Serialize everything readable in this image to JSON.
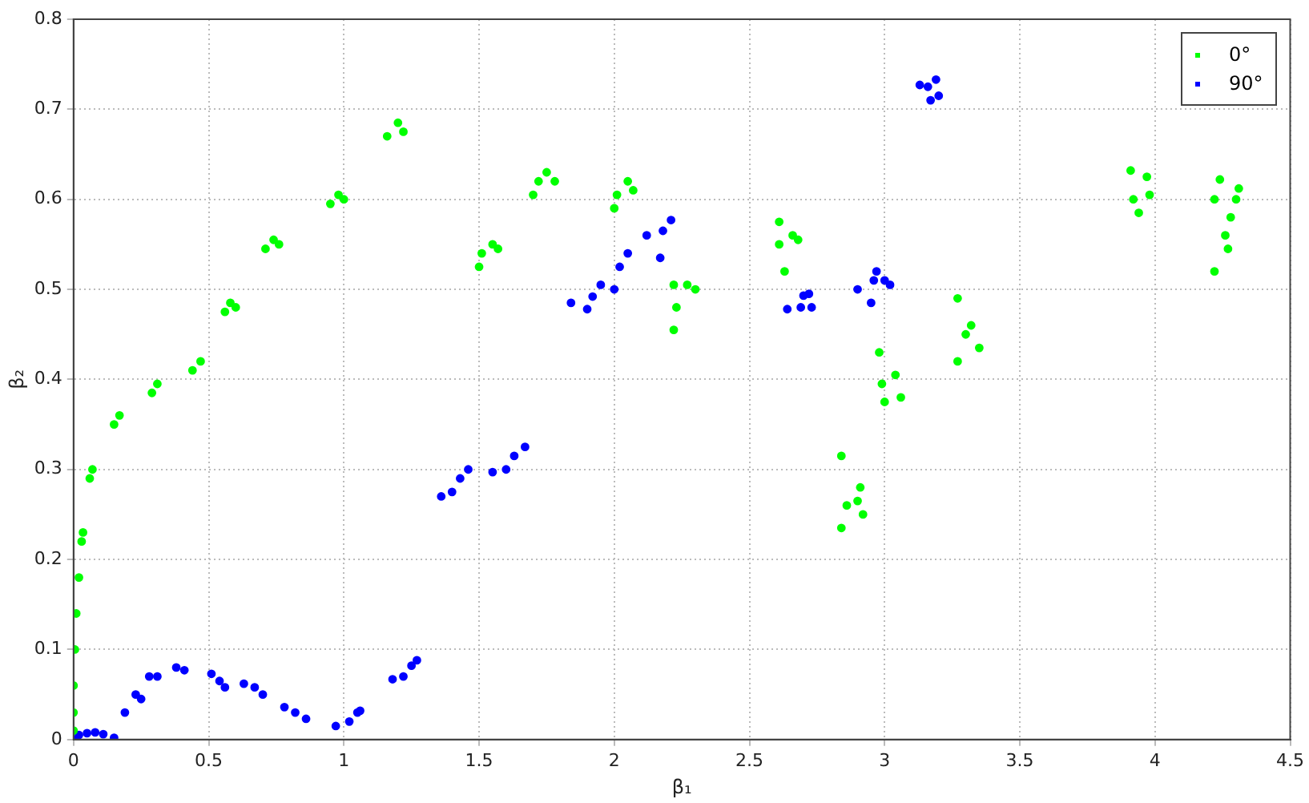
{
  "chart_data": {
    "type": "scatter",
    "xlabel": "β₁",
    "ylabel": "β₂",
    "xlim": [
      0,
      4.5
    ],
    "ylim": [
      0,
      0.8
    ],
    "xticks": [
      0,
      0.5,
      1,
      1.5,
      2,
      2.5,
      3,
      3.5,
      4,
      4.5
    ],
    "yticks": [
      0,
      0.1,
      0.2,
      0.3,
      0.4,
      0.5,
      0.6,
      0.7,
      0.8
    ],
    "grid": true,
    "legend": "top right",
    "marker": "circle",
    "series": [
      {
        "name": "0°",
        "color": "#00ff00",
        "x": [
          0,
          0,
          0,
          0.005,
          0.01,
          0.02,
          0.03,
          0.035,
          0.06,
          0.07,
          0.15,
          0.17,
          0.29,
          0.31,
          0.44,
          0.47,
          0.56,
          0.58,
          0.6,
          0.71,
          0.74,
          0.76,
          0.95,
          0.98,
          1.0,
          1.16,
          1.2,
          1.22,
          1.5,
          1.51,
          1.55,
          1.57,
          1.7,
          1.72,
          1.75,
          1.78,
          2.0,
          2.01,
          2.05,
          2.07,
          2.22,
          2.23,
          2.22,
          2.27,
          2.3,
          2.61,
          2.61,
          2.63,
          2.66,
          2.68,
          2.84,
          2.84,
          2.86,
          2.9,
          2.91,
          2.92,
          2.98,
          2.99,
          3.0,
          3.04,
          3.06,
          3.27,
          3.27,
          3.3,
          3.32,
          3.35,
          3.91,
          3.92,
          3.94,
          3.97,
          3.98,
          4.22,
          4.22,
          4.24,
          4.26,
          4.27,
          4.28,
          4.3,
          4.31
        ],
        "values": [
          0.01,
          0.03,
          0.06,
          0.1,
          0.14,
          0.18,
          0.22,
          0.23,
          0.29,
          0.3,
          0.35,
          0.36,
          0.385,
          0.395,
          0.41,
          0.42,
          0.475,
          0.485,
          0.48,
          0.545,
          0.555,
          0.55,
          0.595,
          0.605,
          0.6,
          0.67,
          0.685,
          0.675,
          0.525,
          0.54,
          0.55,
          0.545,
          0.605,
          0.62,
          0.63,
          0.62,
          0.59,
          0.605,
          0.62,
          0.61,
          0.455,
          0.48,
          0.505,
          0.505,
          0.5,
          0.575,
          0.55,
          0.52,
          0.56,
          0.555,
          0.315,
          0.235,
          0.26,
          0.265,
          0.28,
          0.25,
          0.43,
          0.395,
          0.375,
          0.405,
          0.38,
          0.49,
          0.42,
          0.45,
          0.46,
          0.435,
          0.632,
          0.6,
          0.585,
          0.625,
          0.605,
          0.52,
          0.6,
          0.622,
          0.56,
          0.545,
          0.58,
          0.6,
          0.612
        ]
      },
      {
        "name": "90°",
        "color": "#0000ff",
        "x": [
          0,
          0.02,
          0.05,
          0.08,
          0.11,
          0.15,
          0.19,
          0.23,
          0.25,
          0.28,
          0.31,
          0.38,
          0.41,
          0.51,
          0.54,
          0.56,
          0.63,
          0.67,
          0.7,
          0.78,
          0.82,
          0.86,
          0.97,
          1.02,
          1.05,
          1.06,
          1.18,
          1.22,
          1.25,
          1.27,
          1.36,
          1.4,
          1.43,
          1.46,
          1.55,
          1.6,
          1.63,
          1.67,
          1.84,
          1.9,
          1.92,
          1.95,
          2.0,
          2.02,
          2.05,
          2.12,
          2.17,
          2.18,
          2.21,
          2.64,
          2.69,
          2.7,
          2.72,
          2.73,
          2.9,
          2.95,
          2.96,
          2.97,
          3.0,
          3.02,
          3.13,
          3.16,
          3.17,
          3.19,
          3.2
        ],
        "values": [
          0,
          0.005,
          0.007,
          0.008,
          0.006,
          0.002,
          0.03,
          0.05,
          0.045,
          0.07,
          0.07,
          0.08,
          0.077,
          0.073,
          0.065,
          0.058,
          0.062,
          0.058,
          0.05,
          0.036,
          0.03,
          0.023,
          0.015,
          0.02,
          0.03,
          0.032,
          0.067,
          0.07,
          0.082,
          0.088,
          0.27,
          0.275,
          0.29,
          0.3,
          0.297,
          0.3,
          0.315,
          0.325,
          0.485,
          0.478,
          0.492,
          0.505,
          0.5,
          0.525,
          0.54,
          0.56,
          0.535,
          0.565,
          0.577,
          0.478,
          0.48,
          0.493,
          0.495,
          0.48,
          0.5,
          0.485,
          0.51,
          0.52,
          0.51,
          0.505,
          0.727,
          0.725,
          0.71,
          0.733,
          0.715
        ]
      }
    ]
  }
}
